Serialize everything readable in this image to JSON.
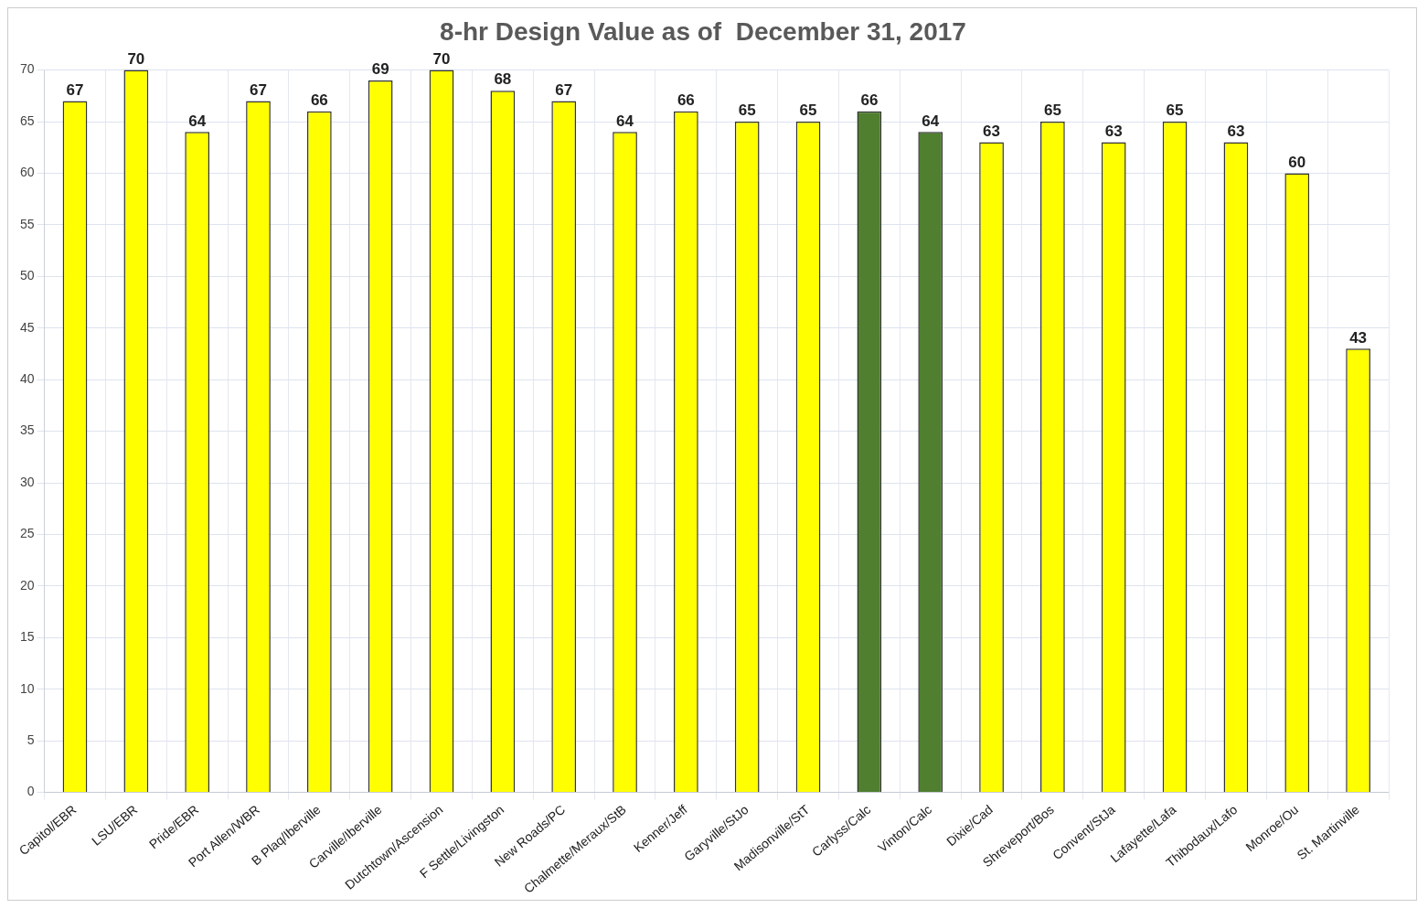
{
  "chart_data": {
    "type": "bar",
    "title": "8-hr Design Value as of  December 31, 2017",
    "categories": [
      "Capitol/EBR",
      "LSU/EBR",
      "Pride/EBR",
      "Port Allen/WBR",
      "B Plaq/Iberville",
      "Carville/Iberville",
      "Dutchtown/Ascension",
      "F Settle/Livingston",
      "New Roads/PC",
      "Chalmette/Meraux/StB",
      "Kenner/Jeff",
      "Garyville/StJo",
      "Madisonville/StT",
      "Carlyss/Calc",
      "Vinton/Calc",
      "Dixie/Cad",
      "Shreveport/Bos",
      "Convent/StJa",
      "Lafayette/Lafa",
      "Thibodaux/Lafo",
      "Monroe/Ou",
      "St. Martinville"
    ],
    "values": [
      67,
      70,
      64,
      67,
      66,
      69,
      70,
      68,
      67,
      64,
      66,
      65,
      65,
      66,
      64,
      63,
      65,
      63,
      65,
      63,
      60,
      43
    ],
    "colors": [
      "#ffff00",
      "#ffff00",
      "#ffff00",
      "#ffff00",
      "#ffff00",
      "#ffff00",
      "#ffff00",
      "#ffff00",
      "#ffff00",
      "#ffff00",
      "#ffff00",
      "#ffff00",
      "#ffff00",
      "#4f7f2f",
      "#4f7f2f",
      "#ffff00",
      "#ffff00",
      "#ffff00",
      "#ffff00",
      "#ffff00",
      "#ffff00",
      "#ffff00"
    ],
    "ylim": [
      0,
      70
    ],
    "yticks": [
      0,
      5,
      10,
      15,
      20,
      25,
      30,
      35,
      40,
      45,
      50,
      55,
      60,
      65,
      70
    ],
    "grid": true,
    "data_labels": true
  }
}
